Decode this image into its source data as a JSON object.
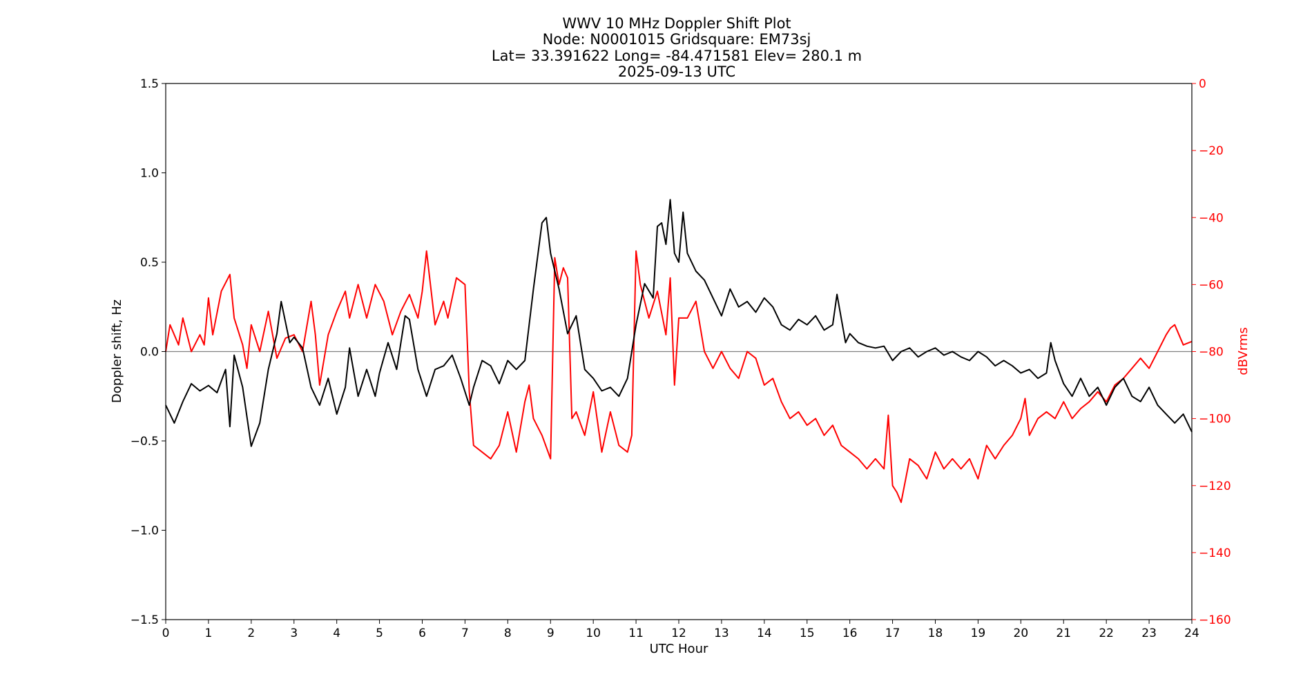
{
  "chart_data": {
    "type": "line",
    "title_lines": [
      "WWV 10 MHz Doppler Shift Plot",
      "Node:  N0001015     Gridsquare:  EM73sj",
      "Lat= 33.391622    Long= -84.471581    Elev= 280.1 m",
      "2025-09-13  UTC"
    ],
    "xlabel": "UTC Hour",
    "ylabel_left": "Doppler shift, Hz",
    "ylabel_right": "dBVrms",
    "xlim": [
      0,
      24
    ],
    "ylim_left": [
      -1.5,
      1.5
    ],
    "ylim_right": [
      -160,
      0
    ],
    "x_ticks": [
      0,
      1,
      2,
      3,
      4,
      5,
      6,
      7,
      8,
      9,
      10,
      11,
      12,
      13,
      14,
      15,
      16,
      17,
      18,
      19,
      20,
      21,
      22,
      23,
      24
    ],
    "y_left_ticks": [
      "−1.5",
      "−1.0",
      "−0.5",
      "0.0",
      "0.5",
      "1.0",
      "1.5"
    ],
    "y_right_ticks": [
      "−160",
      "−140",
      "−120",
      "−100",
      "−80",
      "−60",
      "−40",
      "−20",
      "0"
    ],
    "colors": {
      "doppler": "#000000",
      "power": "#ff0000",
      "zero_line": "#808080"
    },
    "series": [
      {
        "axis": "left",
        "color": "#000000",
        "x": [
          0,
          0.2,
          0.4,
          0.6,
          0.8,
          1.0,
          1.2,
          1.4,
          1.5,
          1.6,
          1.8,
          2.0,
          2.2,
          2.4,
          2.6,
          2.7,
          2.9,
          3.0,
          3.2,
          3.4,
          3.6,
          3.8,
          4.0,
          4.2,
          4.3,
          4.5,
          4.7,
          4.9,
          5.0,
          5.2,
          5.4,
          5.6,
          5.7,
          5.9,
          6.1,
          6.3,
          6.5,
          6.7,
          6.9,
          7.1,
          7.2,
          7.4,
          7.6,
          7.8,
          8.0,
          8.2,
          8.4,
          8.6,
          8.8,
          8.9,
          9.0,
          9.2,
          9.4,
          9.6,
          9.8,
          10.0,
          10.2,
          10.4,
          10.6,
          10.8,
          11.0,
          11.2,
          11.4,
          11.5,
          11.6,
          11.7,
          11.8,
          11.9,
          12.0,
          12.1,
          12.2,
          12.4,
          12.6,
          12.8,
          13.0,
          13.2,
          13.4,
          13.6,
          13.8,
          14.0,
          14.2,
          14.4,
          14.6,
          14.8,
          15.0,
          15.2,
          15.4,
          15.6,
          15.7,
          15.9,
          16.0,
          16.2,
          16.4,
          16.6,
          16.8,
          17.0,
          17.2,
          17.4,
          17.6,
          17.8,
          18.0,
          18.2,
          18.4,
          18.6,
          18.8,
          19.0,
          19.2,
          19.4,
          19.6,
          19.8,
          20.0,
          20.2,
          20.4,
          20.6,
          20.7,
          20.8,
          21.0,
          21.2,
          21.4,
          21.6,
          21.8,
          22.0,
          22.2,
          22.4,
          22.6,
          22.8,
          23.0,
          23.2,
          23.4,
          23.6,
          23.8,
          24.0
        ],
        "values": [
          -0.3,
          -0.4,
          -0.28,
          -0.18,
          -0.22,
          -0.19,
          -0.23,
          -0.1,
          -0.42,
          -0.02,
          -0.2,
          -0.53,
          -0.4,
          -0.1,
          0.1,
          0.28,
          0.05,
          0.08,
          0.02,
          -0.2,
          -0.3,
          -0.15,
          -0.35,
          -0.2,
          0.02,
          -0.25,
          -0.1,
          -0.25,
          -0.12,
          0.05,
          -0.1,
          0.2,
          0.18,
          -0.1,
          -0.25,
          -0.1,
          -0.08,
          -0.02,
          -0.15,
          -0.3,
          -0.2,
          -0.05,
          -0.08,
          -0.18,
          -0.05,
          -0.1,
          -0.05,
          0.35,
          0.72,
          0.75,
          0.55,
          0.35,
          0.1,
          0.2,
          -0.1,
          -0.15,
          -0.22,
          -0.2,
          -0.25,
          -0.15,
          0.15,
          0.38,
          0.3,
          0.7,
          0.72,
          0.6,
          0.85,
          0.55,
          0.5,
          0.78,
          0.55,
          0.45,
          0.4,
          0.3,
          0.2,
          0.35,
          0.25,
          0.28,
          0.22,
          0.3,
          0.25,
          0.15,
          0.12,
          0.18,
          0.15,
          0.2,
          0.12,
          0.15,
          0.32,
          0.05,
          0.1,
          0.05,
          0.03,
          0.02,
          0.03,
          -0.05,
          0.0,
          0.02,
          -0.03,
          0.0,
          0.02,
          -0.02,
          0.0,
          -0.03,
          -0.05,
          0.0,
          -0.03,
          -0.08,
          -0.05,
          -0.08,
          -0.12,
          -0.1,
          -0.15,
          -0.12,
          0.05,
          -0.05,
          -0.18,
          -0.25,
          -0.15,
          -0.25,
          -0.2,
          -0.3,
          -0.2,
          -0.15,
          -0.25,
          -0.28,
          -0.2,
          -0.3,
          -0.35,
          -0.4,
          -0.35,
          -0.45
        ]
      },
      {
        "axis": "right",
        "color": "#ff0000",
        "x": [
          0,
          0.1,
          0.3,
          0.4,
          0.6,
          0.8,
          0.9,
          1.0,
          1.1,
          1.3,
          1.5,
          1.6,
          1.8,
          1.9,
          2.0,
          2.2,
          2.4,
          2.6,
          2.8,
          3.0,
          3.2,
          3.4,
          3.5,
          3.6,
          3.8,
          4.0,
          4.2,
          4.3,
          4.5,
          4.7,
          4.9,
          5.1,
          5.3,
          5.5,
          5.7,
          5.9,
          6.0,
          6.1,
          6.3,
          6.5,
          6.6,
          6.8,
          7.0,
          7.1,
          7.2,
          7.4,
          7.6,
          7.8,
          8.0,
          8.2,
          8.4,
          8.5,
          8.6,
          8.8,
          9.0,
          9.1,
          9.2,
          9.3,
          9.4,
          9.5,
          9.6,
          9.8,
          10.0,
          10.2,
          10.4,
          10.6,
          10.8,
          10.9,
          11.0,
          11.1,
          11.3,
          11.5,
          11.7,
          11.8,
          11.9,
          12.0,
          12.2,
          12.4,
          12.6,
          12.8,
          13.0,
          13.2,
          13.4,
          13.6,
          13.8,
          14.0,
          14.2,
          14.4,
          14.6,
          14.8,
          15.0,
          15.2,
          15.4,
          15.6,
          15.8,
          16.0,
          16.2,
          16.4,
          16.6,
          16.8,
          16.9,
          17.0,
          17.1,
          17.2,
          17.4,
          17.6,
          17.8,
          18.0,
          18.2,
          18.4,
          18.6,
          18.8,
          19.0,
          19.2,
          19.4,
          19.6,
          19.8,
          20.0,
          20.1,
          20.2,
          20.4,
          20.6,
          20.8,
          21.0,
          21.2,
          21.4,
          21.6,
          21.8,
          22.0,
          22.2,
          22.4,
          22.6,
          22.8,
          23.0,
          23.2,
          23.4,
          23.5,
          23.6,
          23.8,
          24.0
        ],
        "values": [
          -80,
          -72,
          -78,
          -70,
          -80,
          -75,
          -78,
          -64,
          -75,
          -62,
          -57,
          -70,
          -78,
          -85,
          -72,
          -80,
          -68,
          -82,
          -76,
          -75,
          -80,
          -65,
          -75,
          -90,
          -75,
          -68,
          -62,
          -70,
          -60,
          -70,
          -60,
          -65,
          -75,
          -68,
          -63,
          -70,
          -62,
          -50,
          -72,
          -65,
          -70,
          -58,
          -60,
          -92,
          -108,
          -110,
          -112,
          -108,
          -98,
          -110,
          -95,
          -90,
          -100,
          -105,
          -112,
          -52,
          -60,
          -55,
          -58,
          -100,
          -98,
          -105,
          -92,
          -110,
          -98,
          -108,
          -110,
          -105,
          -50,
          -60,
          -70,
          -62,
          -75,
          -58,
          -90,
          -70,
          -70,
          -65,
          -80,
          -85,
          -80,
          -85,
          -88,
          -80,
          -82,
          -90,
          -88,
          -95,
          -100,
          -98,
          -102,
          -100,
          -105,
          -102,
          -108,
          -110,
          -112,
          -115,
          -112,
          -115,
          -99,
          -120,
          -122,
          -125,
          -112,
          -114,
          -118,
          -110,
          -115,
          -112,
          -115,
          -112,
          -118,
          -108,
          -112,
          -108,
          -105,
          -100,
          -94,
          -105,
          -100,
          -98,
          -100,
          -95,
          -100,
          -97,
          -95,
          -92,
          -95,
          -90,
          -88,
          -85,
          -82,
          -85,
          -80,
          -75,
          -73,
          -72,
          -78,
          -77
        ]
      }
    ]
  }
}
